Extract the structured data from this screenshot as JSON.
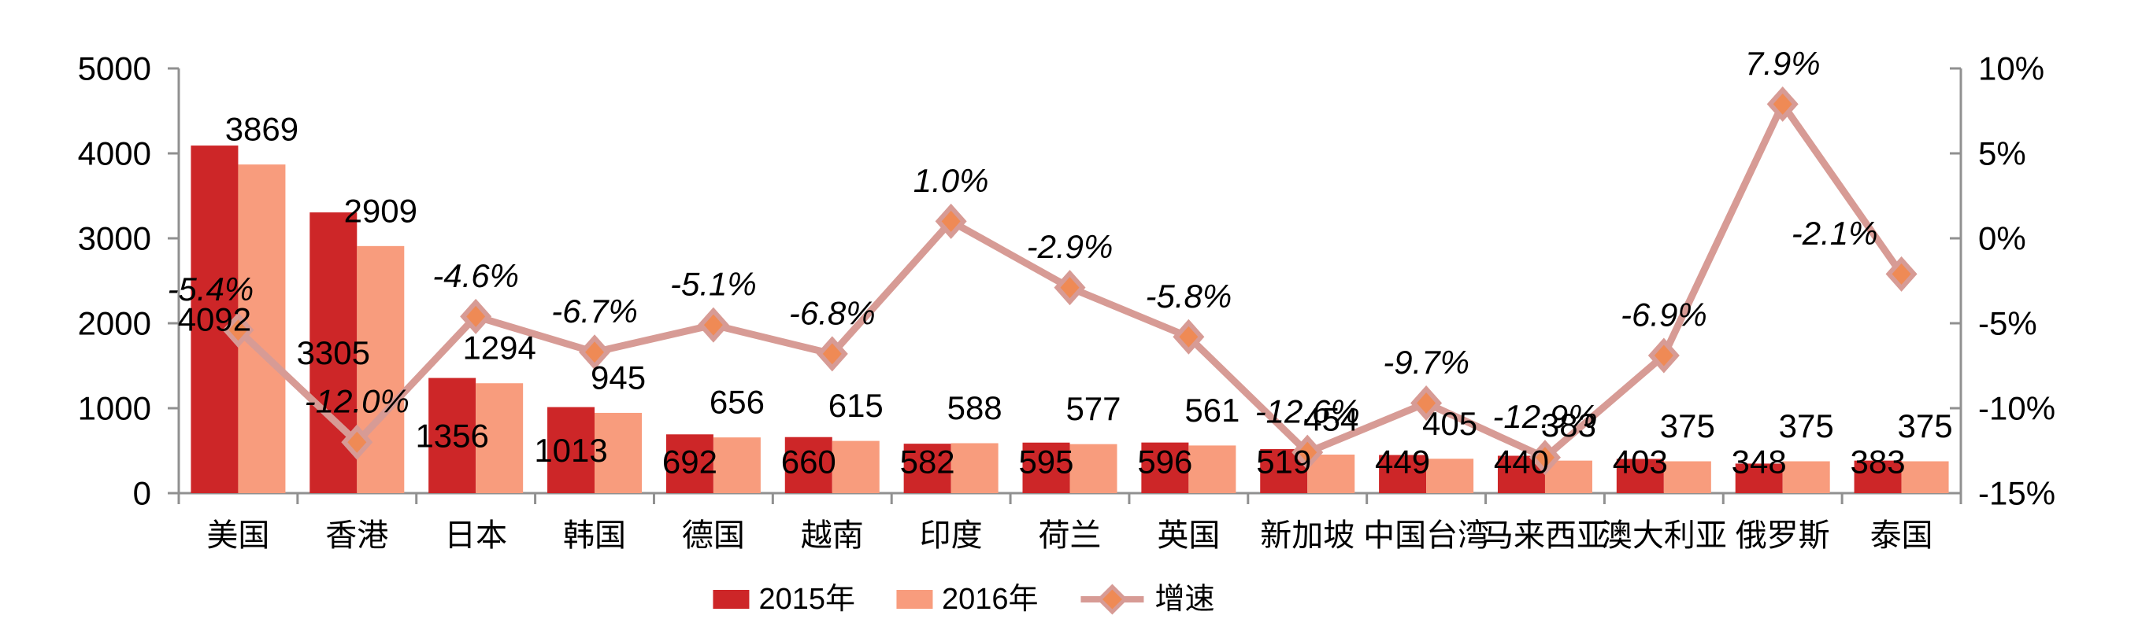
{
  "chart_data": {
    "type": "bar",
    "subtype": "grouped-bars-with-line-overlay",
    "title": "",
    "categories": [
      "美国",
      "香港",
      "日本",
      "韩国",
      "德国",
      "越南",
      "印度",
      "荷兰",
      "英国",
      "新加坡",
      "中国台湾",
      "马来西亚",
      "澳大利亚",
      "俄罗斯",
      "泰国"
    ],
    "series": [
      {
        "name": "2015年",
        "type": "bar",
        "axis": "left",
        "values": [
          4092,
          3305,
          1356,
          1013,
          692,
          660,
          582,
          595,
          596,
          519,
          449,
          440,
          403,
          348,
          383
        ],
        "labels": [
          "4092",
          "3305",
          "1356",
          "1013",
          "692",
          "660",
          "582",
          "595",
          "596",
          "519",
          "449",
          "440",
          "403",
          "348",
          "383"
        ]
      },
      {
        "name": "2016年",
        "type": "bar",
        "axis": "left",
        "values": [
          3869,
          2909,
          1294,
          945,
          656,
          615,
          588,
          577,
          561,
          454,
          405,
          383,
          375,
          375,
          375
        ],
        "labels": [
          "3869",
          "2909",
          "1294",
          "945",
          "656",
          "615",
          "588",
          "577",
          "561",
          "454",
          "405",
          "383",
          "375",
          "375",
          "375"
        ]
      },
      {
        "name": "增速",
        "type": "line",
        "axis": "right",
        "values": [
          -5.4,
          -12.0,
          -4.6,
          -6.7,
          -5.1,
          -6.8,
          1.0,
          -2.9,
          -5.8,
          -12.6,
          -9.7,
          -12.9,
          -6.9,
          7.9,
          -2.1
        ],
        "labels": [
          "-5.4%",
          "-12.0%",
          "-4.6%",
          "-6.7%",
          "-5.1%",
          "-6.8%",
          "1.0%",
          "-2.9%",
          "-5.8%",
          "-12.6%",
          "-9.7%",
          "-12.9%",
          "-6.9%",
          "7.9%",
          "-2.1%"
        ],
        "label_dx": [
          -35,
          0,
          0,
          0,
          0,
          0,
          0,
          0,
          0,
          0,
          0,
          0,
          0,
          0,
          -85
        ]
      }
    ],
    "left_axis": {
      "min": 0,
      "max": 5000,
      "ticks": [
        0,
        1000,
        2000,
        3000,
        4000,
        5000
      ],
      "tick_labels": [
        "0",
        "1000",
        "2000",
        "3000",
        "4000",
        "5000"
      ]
    },
    "right_axis": {
      "min": -15,
      "max": 10,
      "ticks": [
        -15,
        -10,
        -5,
        0,
        5,
        10
      ],
      "tick_labels": [
        "-15%",
        "-10%",
        "-5%",
        "0%",
        "5%",
        "10%"
      ]
    },
    "legend": [
      {
        "label": "2015年"
      },
      {
        "label": "2016年"
      },
      {
        "label": "增速"
      }
    ],
    "legend_position": "bottom-center",
    "grid": false,
    "colors": {
      "bar_2015": "#cd2628",
      "bar_2016": "#f89c7d",
      "line": "#d79b95",
      "marker_fill": "#ef8a55",
      "marker_stroke": "#d79b95",
      "axis": "#909090",
      "text": "#000000"
    }
  }
}
